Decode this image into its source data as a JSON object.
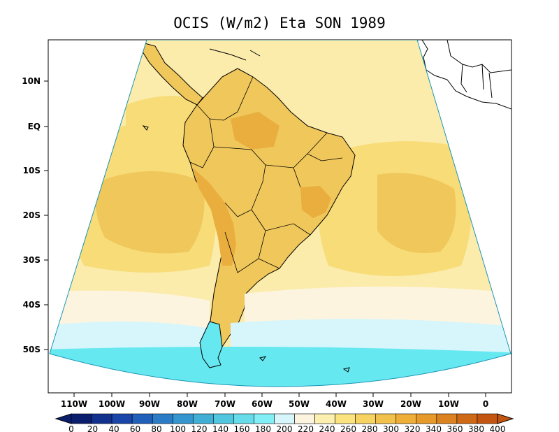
{
  "title": "OCIS (W/m2) Eta SON 1989",
  "lat_labels": [
    "10N",
    "EQ",
    "10S",
    "20S",
    "30S",
    "40S",
    "50S"
  ],
  "lon_labels": [
    "110W",
    "100W",
    "90W",
    "80W",
    "70W",
    "60W",
    "50W",
    "40W",
    "30W",
    "20W",
    "10W",
    "0"
  ],
  "colorbar": {
    "values": [
      0,
      20,
      40,
      60,
      80,
      100,
      120,
      140,
      160,
      180,
      200,
      220,
      240,
      260,
      280,
      300,
      320,
      340,
      360,
      380,
      400
    ],
    "colors": [
      "#0b1e6e",
      "#12318f",
      "#1946a8",
      "#2060bb",
      "#2a7cc7",
      "#3495cf",
      "#41aed6",
      "#50c7df",
      "#66dbe9",
      "#82eef5",
      "#d6f6fb",
      "#fdf4e0",
      "#fbf0b0",
      "#fbe47f",
      "#f7d462",
      "#f2c14b",
      "#eeae38",
      "#e69a2a",
      "#dc8220",
      "#cf6916",
      "#c45510"
    ]
  },
  "map": {
    "region": "South America",
    "field_colors": {
      "cold": "#66e8f0",
      "cool": "#d6f6fb",
      "pale": "#fdf4e0",
      "low": "#fbecac",
      "mid": "#f7dc78",
      "high": "#f0c75a",
      "peak": "#e9ae3e"
    },
    "coast_color": "#000000"
  }
}
